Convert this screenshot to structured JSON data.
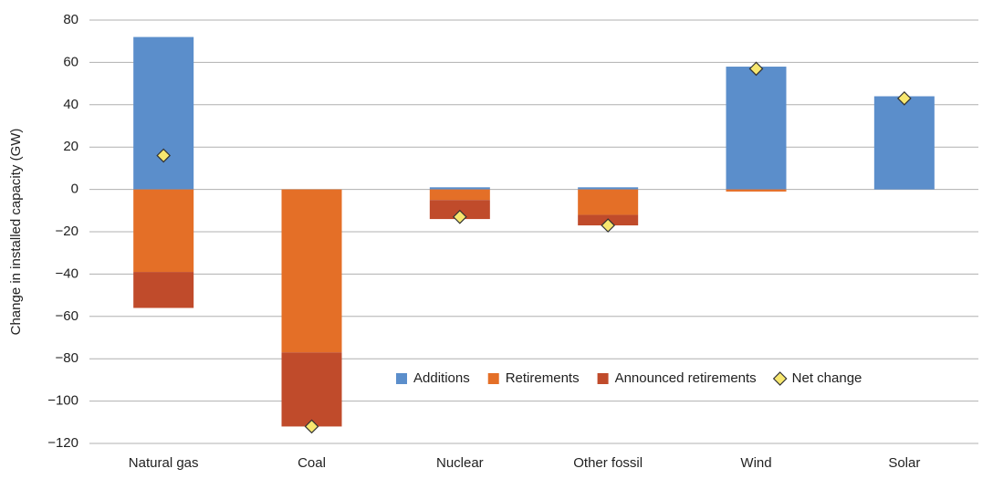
{
  "chart_data": {
    "type": "bar",
    "stacked": true,
    "y_label": "Change in installed capacity (GW)",
    "categories": [
      "Natural gas",
      "Coal",
      "Nuclear",
      "Other fossil",
      "Wind",
      "Solar"
    ],
    "series": [
      {
        "name": "Additions",
        "color": "#5b8ecb",
        "values": [
          72,
          0,
          1,
          1,
          58,
          44
        ]
      },
      {
        "name": "Retirements",
        "color": "#e46f27",
        "values": [
          -39,
          -77,
          -5,
          -12,
          -1,
          0
        ]
      },
      {
        "name": "Announced retirements",
        "color": "#c04b2b",
        "values": [
          -17,
          -35,
          -9,
          -5,
          0,
          0
        ]
      }
    ],
    "net_change": {
      "name": "Net change",
      "color": "#f7e76f",
      "values": [
        16,
        -112,
        -13,
        -17,
        57,
        43
      ]
    },
    "ylim": [
      -120,
      80
    ],
    "yticks": [
      {
        "value": -120,
        "label": "−120"
      },
      {
        "value": -100,
        "label": "−100"
      },
      {
        "value": -80,
        "label": "−80"
      },
      {
        "value": -60,
        "label": "−60"
      },
      {
        "value": -40,
        "label": "−40"
      },
      {
        "value": -20,
        "label": "−20"
      },
      0,
      20,
      40,
      60,
      80
    ],
    "grid": true,
    "legend": "lower right"
  }
}
